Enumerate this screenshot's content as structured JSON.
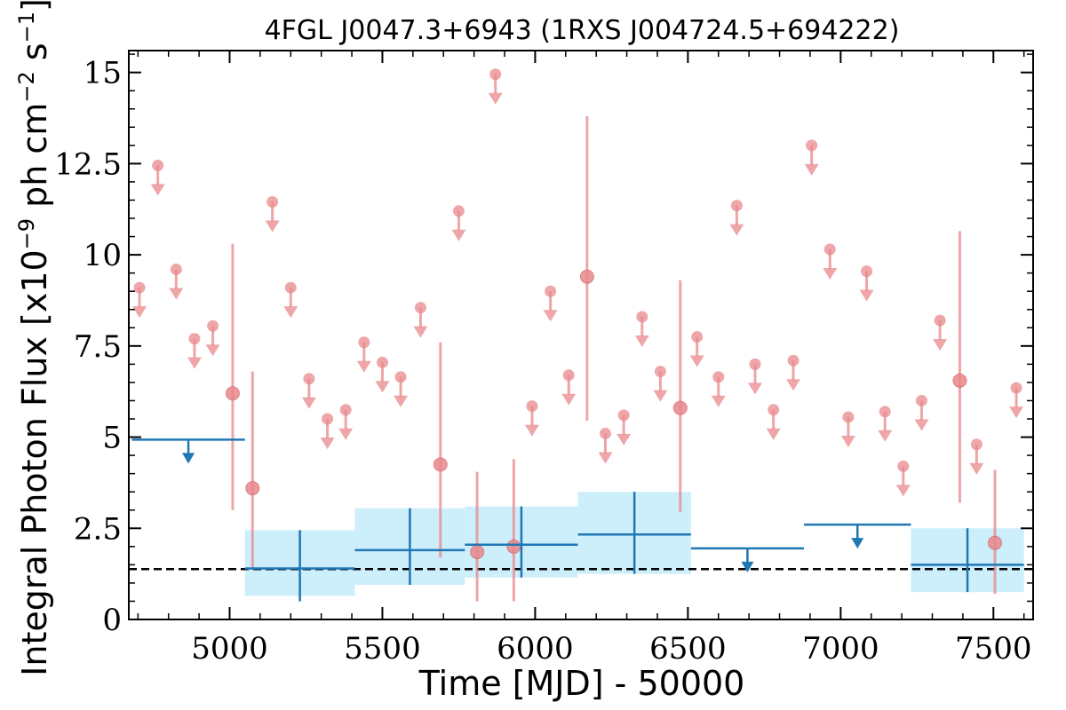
{
  "chart_data": {
    "type": "scatter",
    "title": "4FGL J0047.3+6943 (1RXS J004724.5+694222)",
    "xlabel": "Time [MJD] - 50000",
    "ylabel": "Integral Photon Flux [x10",
    "ylabel_exp": "−9",
    "ylabel_units": " ph cm",
    "ylabel_units_exp": "−2",
    "ylabel_tail": " s",
    "ylabel_tail_exp": "−1",
    "ylabel_close": "]",
    "xlim": [
      4670,
      7630
    ],
    "ylim": [
      0,
      15.6
    ],
    "x_ticks": [
      5000,
      5500,
      6000,
      6500,
      7000,
      7500
    ],
    "x_tick_labels": [
      "5000",
      "5500",
      "6000",
      "6500",
      "7000",
      "7500"
    ],
    "y_ticks": [
      0,
      2.5,
      5,
      7.5,
      10,
      12.5,
      15
    ],
    "y_tick_labels": [
      "0",
      "2.5",
      "5",
      "7.5",
      "10",
      "12.5",
      "15"
    ],
    "reference_line": {
      "y": 1.38,
      "style": "dashed",
      "color": "#000000"
    },
    "colors": {
      "short_bins": "#e8888c",
      "long_bins": "#1f77b4",
      "band": "#cdeefb"
    },
    "short_bins": {
      "upper_limits": [
        {
          "x": 4705,
          "y": 9.1
        },
        {
          "x": 4765,
          "y": 12.45
        },
        {
          "x": 4825,
          "y": 9.6
        },
        {
          "x": 4885,
          "y": 7.7
        },
        {
          "x": 4945,
          "y": 8.05
        },
        {
          "x": 5140,
          "y": 11.45
        },
        {
          "x": 5200,
          "y": 9.1
        },
        {
          "x": 5260,
          "y": 6.6
        },
        {
          "x": 5320,
          "y": 5.5
        },
        {
          "x": 5380,
          "y": 5.75
        },
        {
          "x": 5440,
          "y": 7.6
        },
        {
          "x": 5500,
          "y": 7.05
        },
        {
          "x": 5560,
          "y": 6.65
        },
        {
          "x": 5625,
          "y": 8.55
        },
        {
          "x": 5750,
          "y": 11.2
        },
        {
          "x": 5870,
          "y": 14.95
        },
        {
          "x": 5990,
          "y": 5.85
        },
        {
          "x": 6050,
          "y": 9.0
        },
        {
          "x": 6110,
          "y": 6.7
        },
        {
          "x": 6230,
          "y": 5.1
        },
        {
          "x": 6290,
          "y": 5.6
        },
        {
          "x": 6350,
          "y": 8.3
        },
        {
          "x": 6410,
          "y": 6.8
        },
        {
          "x": 6530,
          "y": 7.75
        },
        {
          "x": 6600,
          "y": 6.65
        },
        {
          "x": 6660,
          "y": 11.35
        },
        {
          "x": 6720,
          "y": 7.0
        },
        {
          "x": 6780,
          "y": 5.75
        },
        {
          "x": 6845,
          "y": 7.1
        },
        {
          "x": 6905,
          "y": 13.0
        },
        {
          "x": 6965,
          "y": 10.15
        },
        {
          "x": 7025,
          "y": 5.55
        },
        {
          "x": 7085,
          "y": 9.55
        },
        {
          "x": 7145,
          "y": 5.7
        },
        {
          "x": 7205,
          "y": 4.2
        },
        {
          "x": 7265,
          "y": 6.0
        },
        {
          "x": 7325,
          "y": 8.2
        },
        {
          "x": 7445,
          "y": 4.8
        },
        {
          "x": 7575,
          "y": 6.35
        }
      ],
      "detections": [
        {
          "x": 5010,
          "y": 6.2,
          "ylow": 3.0,
          "yhigh": 10.3
        },
        {
          "x": 5075,
          "y": 3.6,
          "ylow": 1.4,
          "yhigh": 6.8
        },
        {
          "x": 5690,
          "y": 4.25,
          "ylow": 1.7,
          "yhigh": 7.6
        },
        {
          "x": 5810,
          "y": 1.85,
          "ylow": 0.5,
          "yhigh": 4.05
        },
        {
          "x": 5930,
          "y": 2.0,
          "ylow": 0.5,
          "yhigh": 4.4
        },
        {
          "x": 6170,
          "y": 9.4,
          "ylow": 5.45,
          "yhigh": 13.8
        },
        {
          "x": 6475,
          "y": 5.8,
          "ylow": 2.95,
          "yhigh": 9.3
        },
        {
          "x": 7390,
          "y": 6.55,
          "ylow": 3.2,
          "yhigh": 10.65
        },
        {
          "x": 7505,
          "y": 2.1,
          "ylow": 0.7,
          "yhigh": 4.1
        }
      ]
    },
    "long_bins": {
      "upper_limits": [
        {
          "x0": 4680,
          "x1": 5050,
          "y": 4.93
        },
        {
          "x0": 6510,
          "x1": 6880,
          "y": 1.95
        },
        {
          "x0": 6880,
          "x1": 7230,
          "y": 2.6
        }
      ],
      "detections": [
        {
          "x0": 5050,
          "x1": 5410,
          "xc": 5230,
          "y": 1.4,
          "ylow": 0.5,
          "yhigh": 2.45,
          "band_low": 0.65,
          "band_high": 2.45
        },
        {
          "x0": 5410,
          "x1": 5770,
          "xc": 5590,
          "y": 1.9,
          "ylow": 0.95,
          "yhigh": 3.05,
          "band_low": 0.95,
          "band_high": 3.05
        },
        {
          "x0": 5770,
          "x1": 6140,
          "xc": 5955,
          "y": 2.05,
          "ylow": 1.15,
          "yhigh": 3.1,
          "band_low": 1.15,
          "band_high": 3.1
        },
        {
          "x0": 6140,
          "x1": 6510,
          "xc": 6325,
          "y": 2.33,
          "ylow": 1.25,
          "yhigh": 3.5,
          "band_low": 1.25,
          "band_high": 3.5
        },
        {
          "x0": 7230,
          "x1": 7600,
          "xc": 7415,
          "y": 1.5,
          "ylow": 0.75,
          "yhigh": 2.5,
          "band_low": 0.75,
          "band_high": 2.5
        }
      ]
    }
  }
}
